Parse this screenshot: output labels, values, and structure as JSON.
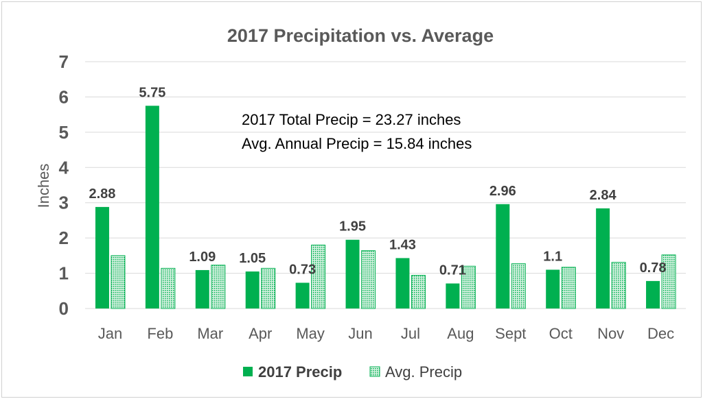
{
  "chart_data": {
    "type": "bar",
    "title": "2017 Precipitation vs. Average",
    "xlabel": "",
    "ylabel": "Inches",
    "ylim": [
      0,
      7
    ],
    "yticks": [
      0,
      1,
      2,
      3,
      4,
      5,
      6,
      7
    ],
    "categories": [
      "Jan",
      "Feb",
      "Mar",
      "Apr",
      "May",
      "Jun",
      "Jul",
      "Aug",
      "Sept",
      "Oct",
      "Nov",
      "Dec"
    ],
    "series": [
      {
        "name": "2017 Precip",
        "color": "#00b050",
        "values": [
          2.88,
          5.75,
          1.09,
          1.05,
          0.73,
          1.95,
          1.43,
          0.71,
          2.96,
          1.1,
          2.84,
          0.78
        ],
        "data_labels": true
      },
      {
        "name": "Avg. Precip",
        "color": "#00b050",
        "pattern": "dotted",
        "values": [
          1.5,
          1.14,
          1.23,
          1.14,
          1.8,
          1.64,
          0.94,
          1.2,
          1.27,
          1.17,
          1.31,
          1.52
        ],
        "data_labels": false
      }
    ],
    "annotations": [
      "2017 Total Precip = 23.27 inches",
      "Avg. Annual Precip = 15.84 inches"
    ],
    "grid": true,
    "legend": "bottom"
  }
}
